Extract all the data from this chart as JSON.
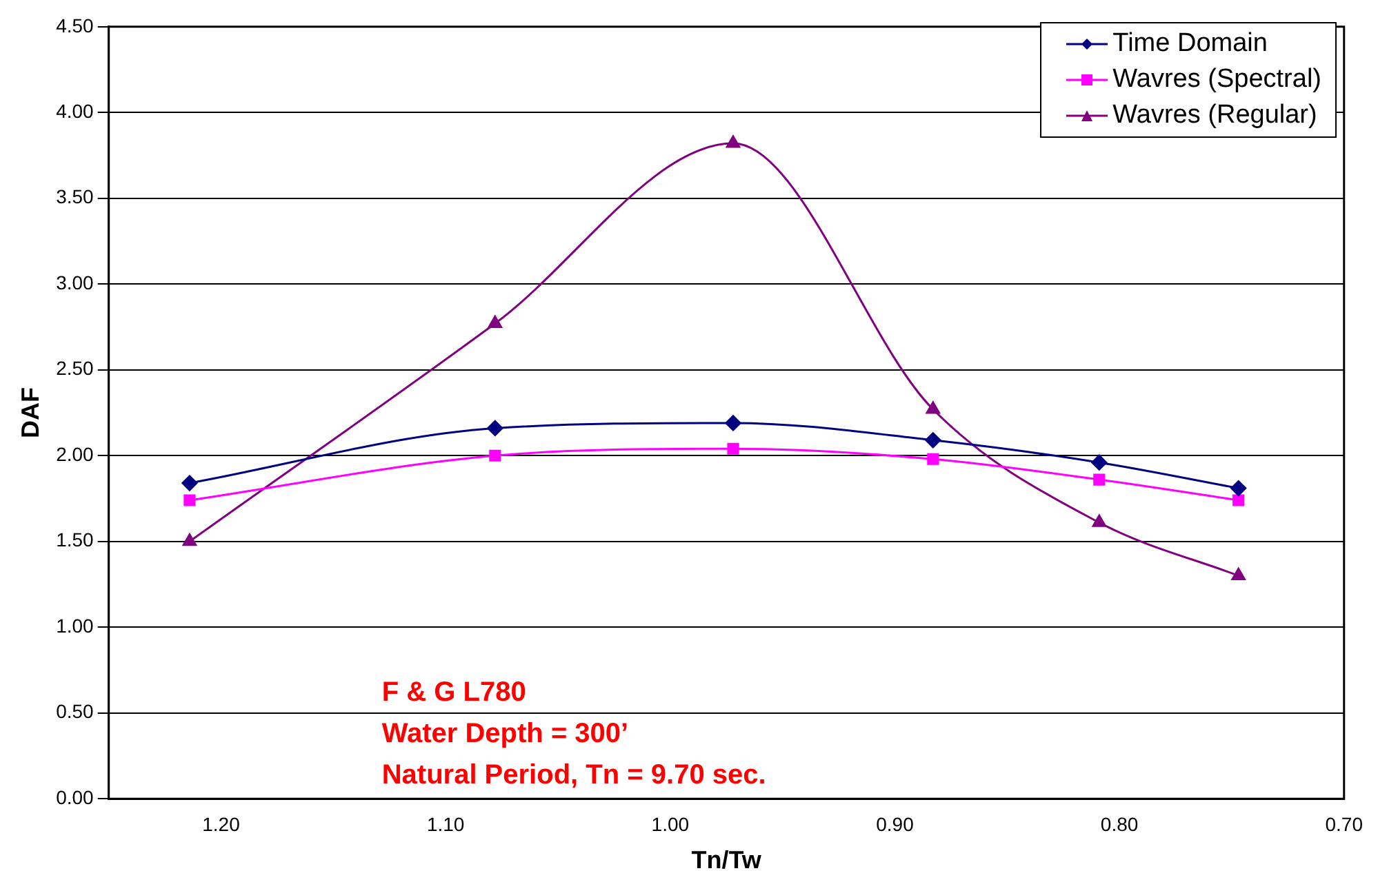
{
  "chart_data": {
    "type": "line",
    "xlabel": "Tn/Tw",
    "ylabel": "DAF",
    "x": [
      1.214,
      1.078,
      0.972,
      0.883,
      0.809,
      0.747
    ],
    "series": [
      {
        "name": "Time Domain",
        "color": "#000080",
        "marker": "diamond",
        "values": [
          1.84,
          2.16,
          2.19,
          2.09,
          1.96,
          1.81
        ]
      },
      {
        "name": "Wavres (Spectral)",
        "color": "#ff00ff",
        "marker": "square",
        "values": [
          1.74,
          2.0,
          2.04,
          1.98,
          1.86,
          1.74
        ]
      },
      {
        "name": "Wavres (Regular)",
        "color": "#800080",
        "marker": "triangle",
        "values": [
          1.5,
          2.77,
          3.82,
          2.27,
          1.61,
          1.3
        ]
      }
    ],
    "xlim": [
      1.25,
      0.7
    ],
    "xticks": [
      {
        "value": 1.2,
        "label": "1.20"
      },
      {
        "value": 1.1,
        "label": "1.10"
      },
      {
        "value": 1.0,
        "label": "1.00"
      },
      {
        "value": 0.9,
        "label": "0.90"
      },
      {
        "value": 0.8,
        "label": "0.80"
      },
      {
        "value": 0.7,
        "label": "0.70"
      }
    ],
    "ylim": [
      0,
      4.5
    ],
    "yticks": [
      {
        "value": 0,
        "label": "0.00"
      },
      {
        "value": 0.5,
        "label": "0.50"
      },
      {
        "value": 1,
        "label": "1.00"
      },
      {
        "value": 1.5,
        "label": "1.50"
      },
      {
        "value": 2,
        "label": "2.00"
      },
      {
        "value": 2.5,
        "label": "2.50"
      },
      {
        "value": 3,
        "label": "3.00"
      },
      {
        "value": 3.5,
        "label": "3.50"
      },
      {
        "value": 4,
        "label": "4.00"
      },
      {
        "value": 4.5,
        "label": "4.50"
      }
    ],
    "grid": "y",
    "legend": "top right",
    "annotations": [
      "F & G L780",
      "Water Depth = 300’",
      "Natural Period, Tn = 9.70 sec."
    ]
  }
}
